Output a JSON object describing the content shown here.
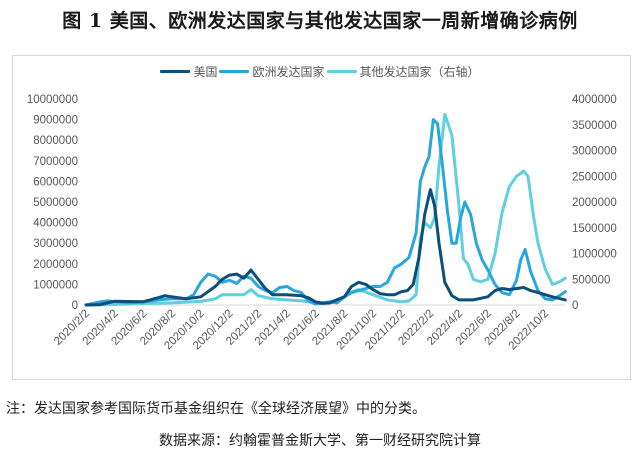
{
  "title": "图 1  美国、欧洲发达国家与其他发达国家一周新增确诊病例",
  "legend": [
    {
      "label": "美国",
      "color": "#0b4f7c"
    },
    {
      "label": "欧洲发达国家",
      "color": "#2aa6dd"
    },
    {
      "label": "其他发达国家（右轴）",
      "color": "#5fd0de"
    }
  ],
  "note": "注：发达国家参考国际货币基金组织在《全球经济展望》中的分类。",
  "source": "数据来源：约翰霍普金斯大学、第一财经研究院计算",
  "chart_data": {
    "type": "line",
    "title": "美国、欧洲发达国家与其他发达国家一周新增确诊病例",
    "xlabel": "",
    "ylabel": "",
    "ylim": [
      0,
      10000000
    ],
    "y2lim": [
      0,
      4000000
    ],
    "grid": false,
    "legend_position": "top",
    "left_ticks": [
      "0",
      "1000000",
      "2000000",
      "3000000",
      "4000000",
      "5000000",
      "6000000",
      "7000000",
      "8000000",
      "9000000",
      "10000000"
    ],
    "right_ticks": [
      "0",
      "500000",
      "1000000",
      "1500000",
      "2000000",
      "2500000",
      "3000000",
      "3500000",
      "4000000"
    ],
    "x_ticks": [
      "2020/2/2",
      "2020/4/2",
      "2020/6/2",
      "2020/8/2",
      "2020/10/2",
      "2020/12/2",
      "2021/2/2",
      "2021/4/2",
      "2021/6/2",
      "2021/8/2",
      "2021/10/2",
      "2021/12/2",
      "2022/2/2",
      "2022/4/2",
      "2022/6/2",
      "2022/8/2",
      "2022/10/2"
    ],
    "x_months_since_2020_2": true,
    "series": [
      {
        "name": "美国",
        "axis": "left",
        "color": "#0b4f7c",
        "x": [
          0,
          1,
          1.6,
          2,
          3,
          4,
          5,
          5.5,
          6,
          7,
          8,
          9,
          9.5,
          10,
          10.5,
          11,
          11.5,
          12,
          12.5,
          13,
          14,
          15,
          15.5,
          16,
          16.5,
          17,
          18,
          18.5,
          19,
          19.5,
          20,
          20.5,
          21,
          21.5,
          22,
          22.4,
          22.8,
          23.2,
          23.6,
          24,
          24.3,
          24.6,
          25,
          25.5,
          26,
          27,
          28,
          28.5,
          29,
          29.5,
          30,
          30.5,
          31,
          31.5,
          32,
          32.5,
          33.4
        ],
        "values": [
          0,
          20000,
          120000,
          180000,
          170000,
          160000,
          350000,
          450000,
          400000,
          300000,
          400000,
          900000,
          1250000,
          1450000,
          1500000,
          1300000,
          1700000,
          1250000,
          800000,
          500000,
          500000,
          450000,
          350000,
          150000,
          80000,
          100000,
          400000,
          900000,
          1100000,
          1000000,
          750000,
          550000,
          500000,
          500000,
          650000,
          700000,
          1000000,
          2300000,
          4400000,
          5600000,
          4800000,
          3000000,
          1100000,
          450000,
          250000,
          250000,
          400000,
          700000,
          800000,
          750000,
          800000,
          850000,
          700000,
          600000,
          500000,
          400000,
          250000
        ]
      },
      {
        "name": "欧洲发达国家",
        "axis": "left",
        "color": "#2aa6dd",
        "x": [
          0,
          1,
          1.5,
          2,
          3,
          4,
          5,
          6,
          7,
          7.5,
          8,
          8.5,
          9,
          9.5,
          10,
          10.5,
          11,
          11.5,
          12,
          12.5,
          13,
          13.5,
          14,
          14.5,
          15,
          15.5,
          16,
          16.5,
          17,
          17.5,
          18,
          18.5,
          19,
          20,
          20.5,
          21,
          21.5,
          22,
          22.5,
          23,
          23.3,
          23.6,
          23.9,
          24.2,
          24.5,
          24.8,
          25.2,
          25.5,
          25.8,
          26.1,
          26.4,
          26.8,
          27.2,
          27.6,
          28,
          28.5,
          29,
          29.5,
          30,
          30.3,
          30.6,
          31,
          31.5,
          32,
          32.5,
          33,
          33.4
        ],
        "values": [
          0,
          150000,
          200000,
          170000,
          100000,
          150000,
          250000,
          300000,
          300000,
          500000,
          1100000,
          1500000,
          1400000,
          1100000,
          1200000,
          1050000,
          1400000,
          1300000,
          900000,
          700000,
          600000,
          850000,
          900000,
          700000,
          600000,
          200000,
          50000,
          80000,
          150000,
          100000,
          400000,
          600000,
          700000,
          900000,
          900000,
          1100000,
          1800000,
          2000000,
          2300000,
          3500000,
          6000000,
          6700000,
          7200000,
          9000000,
          8800000,
          7000000,
          4500000,
          3000000,
          3000000,
          4200000,
          5000000,
          4400000,
          3000000,
          2200000,
          1700000,
          1000000,
          600000,
          500000,
          1200000,
          2200000,
          2700000,
          1600000,
          700000,
          300000,
          250000,
          450000,
          650000
        ]
      },
      {
        "name": "其他发达国家（右轴）",
        "axis": "right",
        "color": "#5fd0de",
        "x": [
          0,
          2,
          4,
          6,
          8,
          9,
          9.5,
          10,
          11,
          11.5,
          12,
          13,
          14,
          15,
          16,
          17,
          18,
          18.5,
          19,
          20,
          21,
          22,
          22.5,
          23,
          23.3,
          23.6,
          24,
          24.3,
          24.6,
          25,
          25.5,
          26,
          26.3,
          26.6,
          27,
          27.5,
          28,
          28.5,
          29,
          29.5,
          30,
          30.5,
          30.8,
          31.2,
          31.5,
          32,
          32.5,
          33,
          33.4
        ],
        "values": [
          0,
          10000,
          30000,
          40000,
          70000,
          120000,
          200000,
          200000,
          200000,
          300000,
          180000,
          120000,
          100000,
          80000,
          40000,
          60000,
          150000,
          250000,
          300000,
          200000,
          100000,
          60000,
          80000,
          200000,
          1300000,
          1600000,
          1500000,
          1700000,
          2700000,
          3700000,
          3300000,
          1900000,
          900000,
          800000,
          500000,
          450000,
          500000,
          1000000,
          1800000,
          2300000,
          2500000,
          2600000,
          2500000,
          1700000,
          1200000,
          700000,
          400000,
          450000,
          520000
        ]
      }
    ]
  }
}
